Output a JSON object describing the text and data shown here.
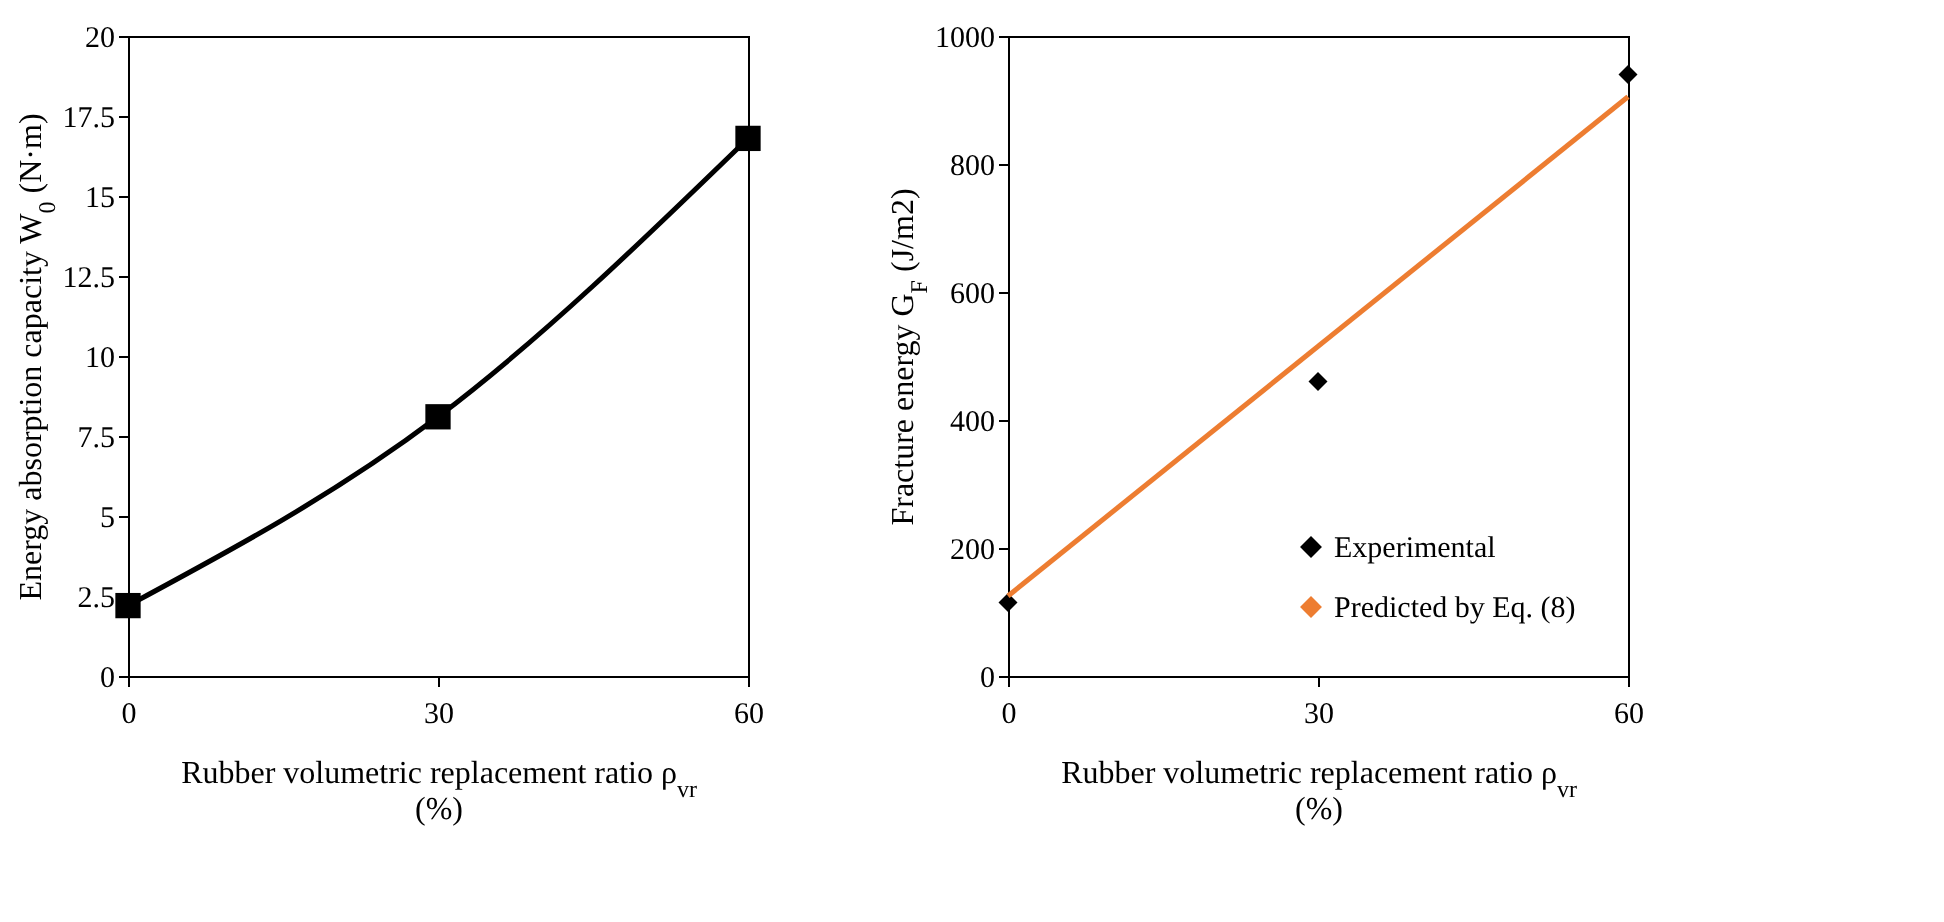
{
  "chart_data": [
    {
      "type": "line",
      "xlabel": "Rubber volumetric replacement ratio ρ$_{vr}$ (%)",
      "ylabel": "Energy absorption capacity W$_{0}$ (N·m)",
      "xlim": [
        0,
        60
      ],
      "xticks": [
        0,
        30,
        60
      ],
      "ylim": [
        0,
        20
      ],
      "yticks": [
        0,
        2.5,
        5,
        7.5,
        10,
        12.5,
        15,
        17.5,
        20
      ],
      "grid": false,
      "legend": false,
      "marker": "square",
      "line_style": "solid",
      "series": [
        {
          "color": "#000000",
          "x": [
            0,
            30,
            60
          ],
          "values": [
            2.2,
            8.1,
            16.8
          ]
        }
      ]
    },
    {
      "type": "line",
      "xlabel": "Rubber volumetric replacement ratio ρ$_{vr}$ (%)",
      "ylabel": "Fracture energy G$_{F}$ (J/m2)",
      "xlim": [
        0,
        60
      ],
      "xticks": [
        0,
        30,
        60
      ],
      "ylim": [
        0,
        1000
      ],
      "yticks": [
        0,
        200,
        400,
        600,
        800,
        1000
      ],
      "grid": false,
      "legend": "bottom right",
      "series": [
        {
          "name": "Experimental",
          "type": "scatter",
          "marker": "diamond",
          "color": "#000000",
          "x": [
            0,
            30,
            60
          ],
          "values": [
            115,
            460,
            940
          ]
        },
        {
          "name": "Predicted by Eq. (8)",
          "marker": "none",
          "line_style": "solid",
          "color": "#ed7d31",
          "x": [
            0,
            60
          ],
          "values": [
            125,
            905
          ]
        }
      ]
    }
  ]
}
